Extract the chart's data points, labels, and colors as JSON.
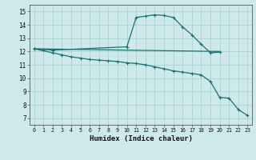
{
  "background_color": "#cee9e9",
  "grid_color": "#aad4d4",
  "line_color": "#1e7070",
  "xlabel": "Humidex (Indice chaleur)",
  "xlim": [
    -0.5,
    23.5
  ],
  "ylim": [
    6.5,
    15.5
  ],
  "yticks": [
    7,
    8,
    9,
    10,
    11,
    12,
    13,
    14,
    15
  ],
  "xticks": [
    0,
    1,
    2,
    3,
    4,
    5,
    6,
    7,
    8,
    9,
    10,
    11,
    12,
    13,
    14,
    15,
    16,
    17,
    18,
    19,
    20,
    21,
    22,
    23
  ],
  "line1_x": [
    0,
    1,
    2,
    10,
    11,
    12,
    13,
    14,
    15,
    16,
    17,
    18,
    19,
    20
  ],
  "line1_y": [
    12.2,
    12.15,
    12.1,
    12.35,
    14.55,
    14.65,
    14.75,
    14.7,
    14.55,
    13.85,
    13.25,
    12.55,
    11.9,
    11.95
  ],
  "line2_x": [
    0,
    2,
    3,
    4,
    5,
    6,
    7,
    8,
    9,
    10,
    11,
    12,
    13,
    14,
    15,
    16,
    17,
    18,
    19,
    20,
    21,
    22,
    23
  ],
  "line2_y": [
    12.2,
    11.9,
    11.75,
    11.6,
    11.5,
    11.4,
    11.35,
    11.3,
    11.25,
    11.15,
    11.1,
    11.0,
    10.85,
    10.7,
    10.55,
    10.45,
    10.35,
    10.25,
    9.75,
    8.55,
    8.5,
    7.65,
    7.2
  ],
  "line3_x": [
    0,
    20
  ],
  "line3_y": [
    12.2,
    12.0
  ]
}
